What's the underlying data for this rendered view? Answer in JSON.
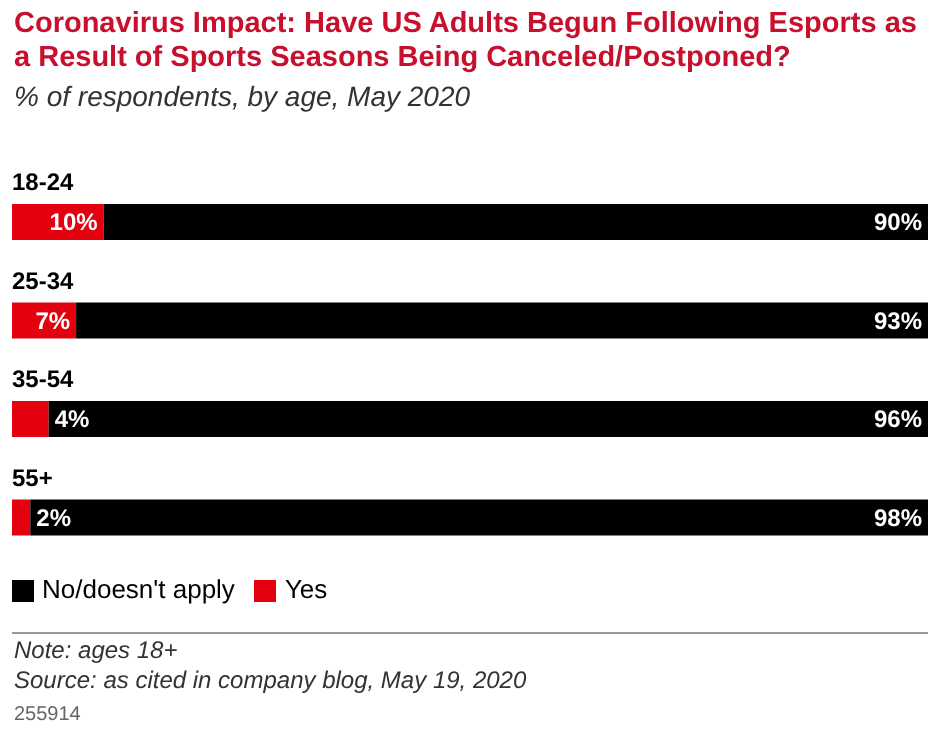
{
  "chart_data": {
    "type": "bar",
    "orientation": "horizontal",
    "stacked": true,
    "title": "Coronavirus Impact: Have US Adults Begun Following Esports as a Result of Sports Seasons Being Canceled/Postponed?",
    "subtitle": "% of respondents, by age, May 2020",
    "categories": [
      "18-24",
      "25-34",
      "35-54",
      "55+"
    ],
    "series": [
      {
        "name": "Yes",
        "color": "#e3000f",
        "values": [
          10,
          7,
          4,
          2
        ],
        "value_labels": [
          "10%",
          "7%",
          "4%",
          "2%"
        ]
      },
      {
        "name": "No/doesn't apply",
        "color": "#000000",
        "values": [
          90,
          93,
          96,
          98
        ],
        "value_labels": [
          "90%",
          "93%",
          "96%",
          "98%"
        ]
      }
    ],
    "tick_labels": false,
    "legend": "bottom left",
    "annotations": [
      "Note: ages 18+",
      "Source: as cited in company blog, May 19, 2020",
      "255914"
    ]
  }
}
